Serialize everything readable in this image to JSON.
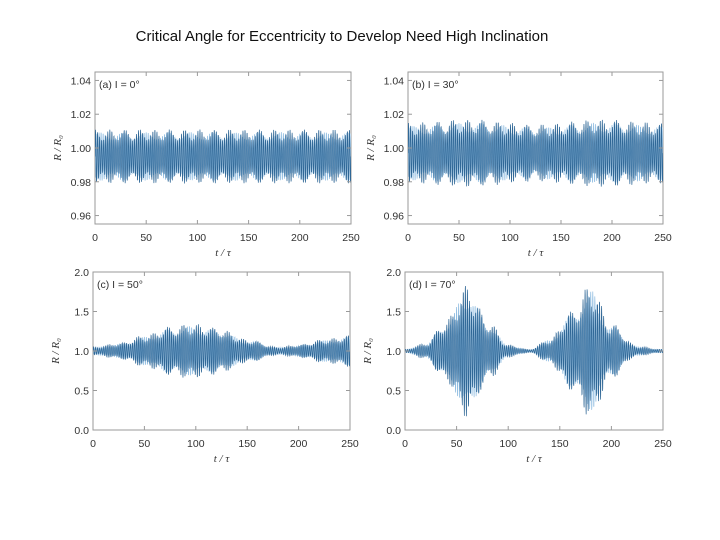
{
  "title": "Critical Angle for Eccentricity to Develop Need High Inclination",
  "colors": {
    "line_dark": "#2f6796",
    "line_light": "#8dbbe0",
    "frame": "#9a9a9a"
  },
  "chart_data": [
    {
      "type": "line",
      "panel_label": "(a) I = 0°",
      "xlabel": "t / τ",
      "ylabel": "R / R₀",
      "xlim": [
        0,
        250
      ],
      "ylim": [
        0.955,
        1.045
      ],
      "xticks": [
        0,
        50,
        100,
        150,
        200,
        250
      ],
      "yticks": [
        0.96,
        0.98,
        1.0,
        1.02,
        1.04
      ],
      "ytick_labels": [
        "0.96",
        "0.98",
        "1.00",
        "1.02",
        "1.04"
      ],
      "series": {
        "name": "R/R0",
        "center": 0.995,
        "amplitude_envelope": {
          "t": [
            0,
            125,
            250
          ],
          "amp": [
            0.016,
            0.016,
            0.016
          ]
        },
        "oscillation_period": 2.0
      }
    },
    {
      "type": "line",
      "panel_label": "(b) I = 30°",
      "xlabel": "t / τ",
      "ylabel": "R / R₀",
      "xlim": [
        0,
        250
      ],
      "ylim": [
        0.955,
        1.045
      ],
      "xticks": [
        0,
        50,
        100,
        150,
        200,
        250
      ],
      "yticks": [
        0.96,
        0.98,
        1.0,
        1.02,
        1.04
      ],
      "ytick_labels": [
        "0.96",
        "0.98",
        "1.00",
        "1.02",
        "1.04"
      ],
      "series": {
        "name": "R/R0",
        "center": 0.997,
        "amplitude_envelope": {
          "t": [
            0,
            60,
            125,
            190,
            250
          ],
          "amp": [
            0.018,
            0.02,
            0.017,
            0.02,
            0.018
          ]
        },
        "oscillation_period": 2.0
      }
    },
    {
      "type": "line",
      "panel_label": "(c) I = 50°",
      "xlabel": "t / τ",
      "ylabel": "R / R₀",
      "xlim": [
        0,
        250
      ],
      "ylim": [
        0.0,
        2.0
      ],
      "xticks": [
        0,
        50,
        100,
        150,
        200,
        250
      ],
      "yticks": [
        0.0,
        0.5,
        1.0,
        1.5,
        2.0
      ],
      "ytick_labels": [
        "0.0",
        "0.5",
        "1.0",
        "1.5",
        "2.0"
      ],
      "series": {
        "name": "R/R0",
        "center": 1.0,
        "amplitude_envelope": {
          "t": [
            0,
            25,
            50,
            75,
            95,
            120,
            150,
            180,
            200,
            225,
            250
          ],
          "amp": [
            0.05,
            0.1,
            0.2,
            0.31,
            0.35,
            0.3,
            0.15,
            0.05,
            0.08,
            0.15,
            0.2
          ]
        },
        "oscillation_period": 2.0
      }
    },
    {
      "type": "line",
      "panel_label": "(d) I = 70°",
      "xlabel": "t / τ",
      "ylabel": "R / R₀",
      "xlim": [
        0,
        250
      ],
      "ylim": [
        0.0,
        2.0
      ],
      "xticks": [
        0,
        50,
        100,
        150,
        200,
        250
      ],
      "yticks": [
        0.0,
        0.5,
        1.0,
        1.5,
        2.0
      ],
      "ytick_labels": [
        "0.0",
        "0.5",
        "1.0",
        "1.5",
        "2.0"
      ],
      "series": {
        "name": "R/R0",
        "center": 1.0,
        "amplitude_envelope": {
          "t": [
            0,
            20,
            40,
            60,
            80,
            100,
            120,
            140,
            160,
            180,
            200,
            225,
            250
          ],
          "amp": [
            0.02,
            0.1,
            0.4,
            0.85,
            0.4,
            0.08,
            0.02,
            0.15,
            0.5,
            0.85,
            0.35,
            0.06,
            0.02
          ]
        },
        "oscillation_period": 2.0
      }
    }
  ]
}
